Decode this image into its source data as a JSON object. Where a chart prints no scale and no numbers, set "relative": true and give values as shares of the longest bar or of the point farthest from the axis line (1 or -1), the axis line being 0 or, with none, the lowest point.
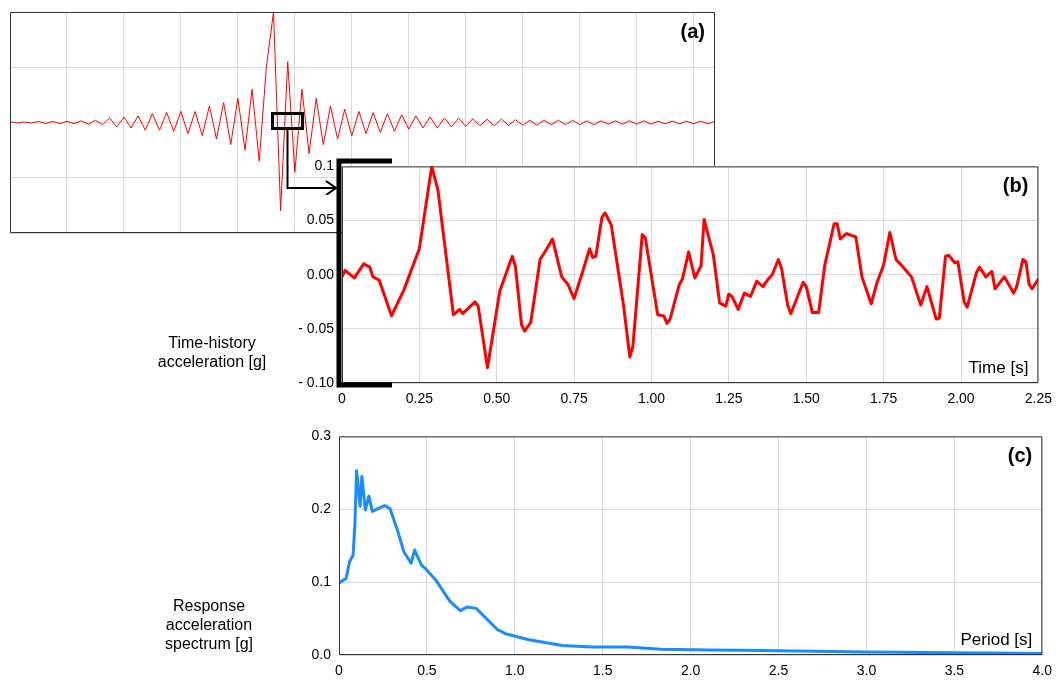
{
  "chart_data": [
    {
      "type": "line",
      "relative": true,
      "grid": true,
      "annotations": [
        "(a)"
      ],
      "categories": [
        null,
        null,
        null,
        null,
        null,
        null,
        null,
        null,
        null,
        null,
        null,
        null,
        null,
        null,
        null,
        null,
        null,
        null,
        null,
        null,
        null,
        null,
        null,
        null,
        null,
        null,
        null,
        null,
        null,
        null,
        null,
        null,
        null,
        null,
        null,
        null,
        null,
        null,
        null,
        null,
        null,
        null,
        null,
        null,
        null,
        null,
        null,
        null,
        null,
        null,
        null,
        null,
        null,
        null,
        null,
        null,
        null,
        null,
        null,
        null,
        null,
        null,
        null,
        null,
        null,
        null,
        null,
        null,
        null,
        null,
        null,
        null,
        null,
        null,
        null,
        null,
        null,
        null,
        null,
        null,
        null,
        null,
        null,
        null,
        null,
        null,
        null,
        null,
        null,
        null,
        null,
        null,
        null,
        null,
        null,
        null,
        null,
        null,
        null,
        null
      ],
      "series": [
        {
          "color": "#ff0000",
          "values": [
            0.005,
            -0.005,
            0.005,
            -0.005,
            0.01,
            -0.01,
            0.01,
            -0.01,
            0.01,
            -0.01,
            0.015,
            -0.015,
            0.02,
            -0.02,
            0.04,
            -0.04,
            0.05,
            -0.05,
            0.06,
            -0.07,
            0.08,
            -0.07,
            0.09,
            -0.08,
            0.1,
            -0.1,
            0.1,
            -0.12,
            0.15,
            -0.15,
            0.18,
            -0.2,
            0.22,
            -0.25,
            0.3,
            -0.35,
            0.5,
            1,
            -0.8,
            0.55,
            -0.45,
            0.3,
            -0.28,
            0.22,
            -0.2,
            0.15,
            -0.15,
            0.12,
            -0.12,
            0.1,
            -0.1,
            0.09,
            -0.09,
            0.08,
            -0.08,
            0.07,
            -0.06,
            0.06,
            -0.05,
            0.05,
            -0.05,
            0.04,
            -0.04,
            0.04,
            -0.035,
            0.035,
            -0.03,
            0.03,
            -0.03,
            0.03,
            -0.025,
            0.025,
            -0.025,
            0.02,
            -0.025,
            0.02,
            -0.02,
            0.02,
            -0.02,
            0.02,
            -0.02,
            0.015,
            -0.02,
            0.015,
            -0.015,
            0.015,
            -0.015,
            0.015,
            -0.015,
            0.015,
            -0.015,
            0.012,
            -0.012,
            0.012,
            -0.012,
            0.012,
            -0.012,
            0.012,
            -0.012,
            0.01
          ]
        }
      ]
    },
    {
      "type": "line",
      "xlabel": "Time [s]",
      "ylabel": "Time-history acceleration [g]",
      "grid": true,
      "annotations": [
        "(b)"
      ],
      "xlim": [
        0,
        2.25
      ],
      "xticks": [
        0,
        {
          "value": 0.25,
          "label": "0.25"
        },
        {
          "value": 0.5,
          "label": "0.50"
        },
        {
          "value": 0.75,
          "label": "0.75"
        },
        {
          "value": 1,
          "label": "1.00"
        },
        {
          "value": 1.25,
          "label": "1.25"
        },
        {
          "value": 1.5,
          "label": "1.50"
        },
        {
          "value": 1.75,
          "label": "1.75"
        },
        {
          "value": 2,
          "label": "2.00"
        },
        {
          "value": 2.25,
          "label": "2.25"
        }
      ],
      "ylim": [
        -0.1,
        0.1
      ],
      "yticks": [
        {
          "value": -0.1,
          "label": "- 0.10"
        },
        {
          "value": -0.05,
          "label": "- 0.05"
        },
        {
          "value": 0,
          "label": "0.00"
        },
        0.05,
        0.1
      ],
      "x": [
        0,
        0.01,
        0.04,
        0.07,
        0.09,
        0.1,
        0.12,
        0.16,
        0.2,
        0.25,
        0.29,
        0.31,
        0.36,
        0.38,
        0.39,
        0.43,
        0.44,
        0.47,
        0.51,
        0.52,
        0.55,
        0.56,
        0.58,
        0.59,
        0.61,
        0.64,
        0.66,
        0.68,
        0.71,
        0.73,
        0.75,
        0.78,
        0.8,
        0.81,
        0.82,
        0.84,
        0.85,
        0.87,
        0.91,
        0.93,
        0.94,
        0.97,
        0.98,
        1.02,
        1.04,
        1.05,
        1.06,
        1.09,
        1.1,
        1.12,
        1.14,
        1.16,
        1.17,
        1.2,
        1.22,
        1.24,
        1.25,
        1.26,
        1.28,
        1.3,
        1.32,
        1.34,
        1.36,
        1.38,
        1.39,
        1.41,
        1.42,
        1.44,
        1.45,
        1.49,
        1.5,
        1.52,
        1.54,
        1.56,
        1.59,
        1.6,
        1.61,
        1.63,
        1.66,
        1.68,
        1.71,
        1.73,
        1.75,
        1.77,
        1.79,
        1.81,
        1.84,
        1.87,
        1.89,
        1.92,
        1.93,
        1.95,
        1.96,
        1.98,
        1.99,
        2.01,
        2.02,
        2.05,
        2.06,
        2.08,
        2.1,
        2.11,
        2.14,
        2.17,
        2.18,
        2.2,
        2.21,
        2.22,
        2.23,
        2.25
      ],
      "series": [
        {
          "color": "#ff0000",
          "values": [
            -0.002,
            0.004,
            -0.003,
            0.01,
            0.007,
            -0.002,
            -0.005,
            -0.038,
            -0.014,
            0.024,
            0.1,
            0.078,
            -0.037,
            -0.032,
            -0.036,
            -0.025,
            -0.029,
            -0.086,
            -0.015,
            -0.007,
            0.017,
            0.008,
            -0.046,
            -0.052,
            -0.044,
            0.014,
            0.023,
            0.033,
            -0.002,
            -0.009,
            -0.022,
            0.005,
            0.024,
            0.016,
            0.017,
            0.053,
            0.057,
            0.046,
            -0.029,
            -0.076,
            -0.066,
            0.037,
            0.034,
            -0.037,
            -0.038,
            -0.045,
            -0.041,
            -0.009,
            -0.004,
            0.021,
            -0.003,
            0.008,
            0.051,
            0.018,
            -0.026,
            -0.029,
            -0.018,
            -0.02,
            -0.032,
            -0.017,
            -0.02,
            -0.006,
            -0.011,
            -0.003,
            0,
            0.014,
            0.006,
            -0.028,
            -0.036,
            -0.007,
            -0.011,
            -0.035,
            -0.035,
            0.009,
            0.047,
            0.047,
            0.033,
            0.038,
            0.035,
            -0.002,
            -0.027,
            -0.006,
            0.009,
            0.039,
            0.014,
            0.008,
            -0.002,
            -0.028,
            -0.011,
            -0.041,
            -0.04,
            0.017,
            0.018,
            0.011,
            0.012,
            -0.025,
            -0.03,
            0.002,
            0.007,
            -0.002,
            0.003,
            -0.013,
            -0.002,
            -0.017,
            -0.011,
            0.014,
            0.012,
            -0.009,
            -0.013,
            -0.004
          ]
        }
      ]
    },
    {
      "type": "line",
      "xlabel": "Period [s]",
      "ylabel": "Response acceleration spectrum [g]",
      "grid": true,
      "annotations": [
        "(c)"
      ],
      "xlim": [
        0,
        4
      ],
      "xticks": [
        0,
        0.5,
        {
          "value": 1,
          "label": "1.0"
        },
        1.5,
        {
          "value": 2,
          "label": "2.0"
        },
        2.5,
        {
          "value": 3,
          "label": "3.0"
        },
        3.5,
        {
          "value": 4,
          "label": "4.0"
        }
      ],
      "ylim": [
        0,
        0.3
      ],
      "yticks": [
        {
          "value": 0,
          "label": "0.0"
        },
        0.1,
        0.2,
        0.3
      ],
      "x": [
        0,
        0.04,
        0.06,
        0.08,
        0.09,
        0.1,
        0.12,
        0.13,
        0.15,
        0.17,
        0.19,
        0.23,
        0.26,
        0.29,
        0.33,
        0.37,
        0.41,
        0.43,
        0.47,
        0.49,
        0.55,
        0.63,
        0.69,
        0.73,
        0.78,
        0.83,
        0.9,
        0.95,
        1.08,
        1.27,
        1.44,
        1.64,
        1.83,
        2.11,
        2.5,
        3,
        3.5,
        4
      ],
      "series": [
        {
          "color": "#1a8cff",
          "values": [
            0.099,
            0.105,
            0.128,
            0.137,
            0.177,
            0.253,
            0.204,
            0.245,
            0.199,
            0.218,
            0.197,
            0.202,
            0.205,
            0.201,
            0.173,
            0.141,
            0.126,
            0.144,
            0.123,
            0.119,
            0.103,
            0.074,
            0.061,
            0.066,
            0.064,
            0.052,
            0.035,
            0.029,
            0.021,
            0.013,
            0.011,
            0.011,
            0.008,
            0.007,
            0.006,
            0.004,
            0.003,
            0.002
          ]
        }
      ]
    }
  ]
}
